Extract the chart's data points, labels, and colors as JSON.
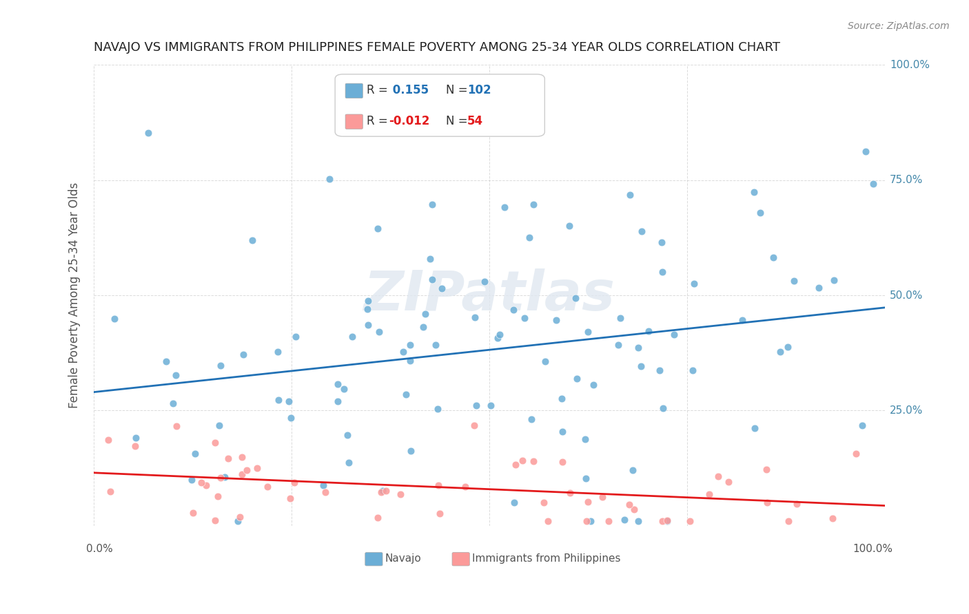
{
  "title": "NAVAJO VS IMMIGRANTS FROM PHILIPPINES FEMALE POVERTY AMONG 25-34 YEAR OLDS CORRELATION CHART",
  "source": "Source: ZipAtlas.com",
  "ylabel": "Female Poverty Among 25-34 Year Olds",
  "navajo_R": 0.155,
  "navajo_N": 102,
  "philippines_R": -0.012,
  "philippines_N": 54,
  "navajo_color": "#6baed6",
  "navajo_line_color": "#2171b5",
  "philippines_color": "#fb9a99",
  "philippines_line_color": "#e31a1c",
  "watermark": "ZIPatlas"
}
